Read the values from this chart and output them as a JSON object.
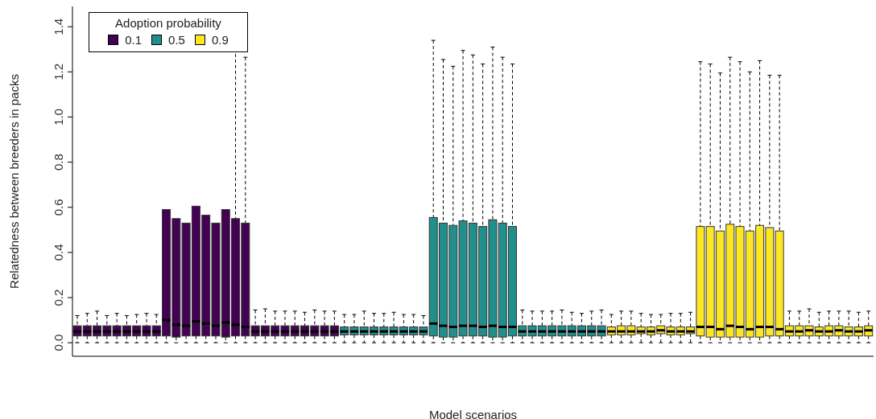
{
  "chart_data": {
    "type": "box",
    "xlabel": "Model scenarios",
    "ylabel": "Relatedness between breeders in packs",
    "legend_title": "Adoption probability",
    "legend": "top left",
    "tick_labels": "y",
    "categories": [
      null,
      null,
      null,
      null,
      null,
      null,
      null,
      null,
      null,
      null,
      null,
      null,
      null,
      null,
      null,
      null,
      null,
      null,
      null,
      null,
      null,
      null,
      null,
      null,
      null,
      null,
      null,
      null,
      null,
      null,
      null,
      null,
      null,
      null,
      null,
      null,
      null,
      null,
      null,
      null,
      null,
      null,
      null,
      null,
      null,
      null,
      null,
      null,
      null,
      null,
      null,
      null,
      null,
      null,
      null,
      null,
      null,
      null,
      null,
      null,
      null,
      null,
      null,
      null,
      null,
      null,
      null,
      null,
      null,
      null,
      null,
      null,
      null,
      null,
      null,
      null,
      null,
      null,
      null,
      null,
      null
    ],
    "ylim": [
      -0.06,
      1.49
    ],
    "yticks": [
      {
        "value": 0,
        "label": "0.0"
      },
      0.2,
      0.4,
      0.6,
      0.8,
      {
        "value": 1,
        "label": "1.0"
      },
      1.2,
      1.4
    ],
    "series": [
      {
        "name": "0.1",
        "color": "#440154",
        "boxes": [
          {
            "low": 0,
            "q1": 0.03,
            "median": 0.05,
            "q3": 0.075,
            "high": 0.12
          },
          {
            "low": 0,
            "q1": 0.03,
            "median": 0.05,
            "q3": 0.075,
            "high": 0.13
          },
          {
            "low": 0,
            "q1": 0.03,
            "median": 0.05,
            "q3": 0.075,
            "high": 0.14
          },
          {
            "low": 0,
            "q1": 0.03,
            "median": 0.05,
            "q3": 0.075,
            "high": 0.12
          },
          {
            "low": 0,
            "q1": 0.03,
            "median": 0.05,
            "q3": 0.075,
            "high": 0.13
          },
          {
            "low": 0,
            "q1": 0.03,
            "median": 0.05,
            "q3": 0.075,
            "high": 0.12
          },
          {
            "low": 0,
            "q1": 0.03,
            "median": 0.05,
            "q3": 0.075,
            "high": 0.125
          },
          {
            "low": 0,
            "q1": 0.03,
            "median": 0.05,
            "q3": 0.075,
            "high": 0.13
          },
          {
            "low": 0,
            "q1": 0.03,
            "median": 0.05,
            "q3": 0.075,
            "high": 0.125
          },
          {
            "low": 0,
            "q1": 0.03,
            "median": 0.1,
            "q3": 0.59,
            "high": null
          },
          {
            "low": 0,
            "q1": 0.025,
            "median": 0.08,
            "q3": 0.55,
            "high": null
          },
          {
            "low": 0,
            "q1": 0.03,
            "median": 0.075,
            "q3": 0.53,
            "high": null
          },
          {
            "low": 0,
            "q1": 0.03,
            "median": 0.095,
            "q3": 0.605,
            "high": null
          },
          {
            "low": 0,
            "q1": 0.03,
            "median": 0.085,
            "q3": 0.565,
            "high": null
          },
          {
            "low": 0,
            "q1": 0.03,
            "median": 0.075,
            "q3": 0.53,
            "high": null
          },
          {
            "low": 0,
            "q1": 0.025,
            "median": 0.09,
            "q3": 0.59,
            "high": null
          },
          {
            "low": 0,
            "q1": 0.03,
            "median": 0.08,
            "q3": 0.55,
            "high": 1.33
          },
          {
            "low": 0,
            "q1": 0.03,
            "median": 0.07,
            "q3": 0.53,
            "high": 1.265
          },
          {
            "low": 0,
            "q1": 0.03,
            "median": 0.05,
            "q3": 0.075,
            "high": 0.145
          },
          {
            "low": 0,
            "q1": 0.03,
            "median": 0.05,
            "q3": 0.075,
            "high": 0.15
          },
          {
            "low": 0,
            "q1": 0.03,
            "median": 0.05,
            "q3": 0.075,
            "high": 0.14
          },
          {
            "low": 0,
            "q1": 0.03,
            "median": 0.05,
            "q3": 0.075,
            "high": 0.14
          },
          {
            "low": 0,
            "q1": 0.03,
            "median": 0.05,
            "q3": 0.075,
            "high": 0.14
          },
          {
            "low": 0,
            "q1": 0.03,
            "median": 0.05,
            "q3": 0.075,
            "high": 0.135
          },
          {
            "low": 0,
            "q1": 0.03,
            "median": 0.05,
            "q3": 0.075,
            "high": 0.145
          },
          {
            "low": 0,
            "q1": 0.03,
            "median": 0.05,
            "q3": 0.075,
            "high": 0.14
          },
          {
            "low": 0,
            "q1": 0.03,
            "median": 0.05,
            "q3": 0.075,
            "high": 0.14
          },
          null,
          null,
          null,
          null,
          null,
          null,
          null,
          null,
          null,
          null,
          null,
          null,
          null,
          null,
          null,
          null,
          null,
          null,
          null,
          null,
          null,
          null,
          null,
          null,
          null,
          null,
          null,
          null,
          null,
          null,
          null,
          null,
          null,
          null,
          null,
          null,
          null,
          null,
          null,
          null,
          null,
          null,
          null,
          null,
          null,
          null,
          null,
          null,
          null,
          null,
          null,
          null,
          null,
          null
        ]
      },
      {
        "name": "0.5",
        "color": "#21908c",
        "boxes": [
          null,
          null,
          null,
          null,
          null,
          null,
          null,
          null,
          null,
          null,
          null,
          null,
          null,
          null,
          null,
          null,
          null,
          null,
          null,
          null,
          null,
          null,
          null,
          null,
          null,
          null,
          null,
          {
            "low": 0,
            "q1": 0.035,
            "median": 0.05,
            "q3": 0.07,
            "high": 0.125
          },
          {
            "low": 0,
            "q1": 0.035,
            "median": 0.05,
            "q3": 0.07,
            "high": 0.125
          },
          {
            "low": 0,
            "q1": 0.035,
            "median": 0.05,
            "q3": 0.07,
            "high": 0.14
          },
          {
            "low": 0,
            "q1": 0.035,
            "median": 0.05,
            "q3": 0.07,
            "high": 0.13
          },
          {
            "low": 0,
            "q1": 0.035,
            "median": 0.05,
            "q3": 0.07,
            "high": 0.13
          },
          {
            "low": 0,
            "q1": 0.035,
            "median": 0.05,
            "q3": 0.07,
            "high": 0.135
          },
          {
            "low": 0,
            "q1": 0.035,
            "median": 0.05,
            "q3": 0.07,
            "high": 0.125
          },
          {
            "low": 0,
            "q1": 0.035,
            "median": 0.05,
            "q3": 0.07,
            "high": 0.125
          },
          {
            "low": 0,
            "q1": 0.035,
            "median": 0.05,
            "q3": 0.07,
            "high": 0.12
          },
          {
            "low": 0,
            "q1": 0.03,
            "median": 0.085,
            "q3": 0.555,
            "high": 1.34
          },
          {
            "low": 0,
            "q1": 0.025,
            "median": 0.075,
            "q3": 0.53,
            "high": 1.255
          },
          {
            "low": 0,
            "q1": 0.025,
            "median": 0.07,
            "q3": 0.52,
            "high": 1.225
          },
          {
            "low": 0,
            "q1": 0.03,
            "median": 0.075,
            "q3": 0.54,
            "high": 1.295
          },
          {
            "low": 0,
            "q1": 0.03,
            "median": 0.075,
            "q3": 0.53,
            "high": 1.275
          },
          {
            "low": 0,
            "q1": 0.03,
            "median": 0.07,
            "q3": 0.515,
            "high": 1.235
          },
          {
            "low": 0,
            "q1": 0.025,
            "median": 0.075,
            "q3": 0.545,
            "high": 1.31
          },
          {
            "low": 0,
            "q1": 0.025,
            "median": 0.07,
            "q3": 0.53,
            "high": 1.265
          },
          {
            "low": 0,
            "q1": 0.03,
            "median": 0.07,
            "q3": 0.515,
            "high": 1.235
          },
          {
            "low": 0,
            "q1": 0.03,
            "median": 0.05,
            "q3": 0.075,
            "high": 0.145
          },
          {
            "low": 0,
            "q1": 0.03,
            "median": 0.05,
            "q3": 0.075,
            "high": 0.14
          },
          {
            "low": 0,
            "q1": 0.03,
            "median": 0.05,
            "q3": 0.075,
            "high": 0.14
          },
          {
            "low": 0,
            "q1": 0.03,
            "median": 0.05,
            "q3": 0.075,
            "high": 0.14
          },
          {
            "low": 0,
            "q1": 0.03,
            "median": 0.05,
            "q3": 0.075,
            "high": 0.145
          },
          {
            "low": 0,
            "q1": 0.03,
            "median": 0.05,
            "q3": 0.075,
            "high": 0.135
          },
          {
            "low": 0,
            "q1": 0.03,
            "median": 0.05,
            "q3": 0.075,
            "high": 0.13
          },
          {
            "low": 0,
            "q1": 0.03,
            "median": 0.05,
            "q3": 0.075,
            "high": 0.14
          },
          {
            "low": 0,
            "q1": 0.03,
            "median": 0.05,
            "q3": 0.075,
            "high": 0.145
          },
          null,
          null,
          null,
          null,
          null,
          null,
          null,
          null,
          null,
          null,
          null,
          null,
          null,
          null,
          null,
          null,
          null,
          null,
          null,
          null,
          null,
          null,
          null,
          null,
          null,
          null,
          null
        ]
      },
      {
        "name": "0.9",
        "color": "#fde725",
        "boxes": [
          null,
          null,
          null,
          null,
          null,
          null,
          null,
          null,
          null,
          null,
          null,
          null,
          null,
          null,
          null,
          null,
          null,
          null,
          null,
          null,
          null,
          null,
          null,
          null,
          null,
          null,
          null,
          null,
          null,
          null,
          null,
          null,
          null,
          null,
          null,
          null,
          null,
          null,
          null,
          null,
          null,
          null,
          null,
          null,
          null,
          null,
          null,
          null,
          null,
          null,
          null,
          null,
          null,
          null,
          {
            "low": 0,
            "q1": 0.035,
            "median": 0.05,
            "q3": 0.07,
            "high": 0.125
          },
          {
            "low": 0,
            "q1": 0.035,
            "median": 0.05,
            "q3": 0.075,
            "high": 0.14
          },
          {
            "low": 0,
            "q1": 0.035,
            "median": 0.05,
            "q3": 0.075,
            "high": 0.14
          },
          {
            "low": 0,
            "q1": 0.04,
            "median": 0.05,
            "q3": 0.07,
            "high": 0.13
          },
          {
            "low": 0,
            "q1": 0.035,
            "median": 0.05,
            "q3": 0.07,
            "high": 0.125
          },
          {
            "low": 0,
            "q1": 0.04,
            "median": 0.055,
            "q3": 0.075,
            "high": 0.125
          },
          {
            "low": 0,
            "q1": 0.035,
            "median": 0.05,
            "q3": 0.07,
            "high": 0.13
          },
          {
            "low": 0,
            "q1": 0.035,
            "median": 0.05,
            "q3": 0.07,
            "high": 0.13
          },
          {
            "low": 0,
            "q1": 0.04,
            "median": 0.05,
            "q3": 0.07,
            "high": 0.135
          },
          {
            "low": 0,
            "q1": 0.03,
            "median": 0.07,
            "q3": 0.515,
            "high": 1.245
          },
          {
            "low": 0,
            "q1": 0.025,
            "median": 0.07,
            "q3": 0.515,
            "high": 1.235
          },
          {
            "low": 0,
            "q1": 0.025,
            "median": 0.06,
            "q3": 0.495,
            "high": 1.195
          },
          {
            "low": 0,
            "q1": 0.025,
            "median": 0.075,
            "q3": 0.525,
            "high": 1.265
          },
          {
            "low": 0,
            "q1": 0.025,
            "median": 0.07,
            "q3": 0.515,
            "high": 1.245
          },
          {
            "low": 0,
            "q1": 0.025,
            "median": 0.06,
            "q3": 0.495,
            "high": 1.2
          },
          {
            "low": 0,
            "q1": 0.025,
            "median": 0.07,
            "q3": 0.52,
            "high": 1.25
          },
          {
            "low": 0,
            "q1": 0.03,
            "median": 0.07,
            "q3": 0.51,
            "high": 1.185
          },
          {
            "low": 0,
            "q1": 0.03,
            "median": 0.06,
            "q3": 0.495,
            "high": 1.185
          },
          {
            "low": 0,
            "q1": 0.03,
            "median": 0.05,
            "q3": 0.075,
            "high": 0.14
          },
          {
            "low": 0,
            "q1": 0.03,
            "median": 0.05,
            "q3": 0.075,
            "high": 0.14
          },
          {
            "low": 0,
            "q1": 0.03,
            "median": 0.055,
            "q3": 0.075,
            "high": 0.15
          },
          {
            "low": 0,
            "q1": 0.03,
            "median": 0.05,
            "q3": 0.07,
            "high": 0.135
          },
          {
            "low": 0,
            "q1": 0.03,
            "median": 0.05,
            "q3": 0.075,
            "high": 0.14
          },
          {
            "low": 0,
            "q1": 0.03,
            "median": 0.055,
            "q3": 0.075,
            "high": 0.14
          },
          {
            "low": 0,
            "q1": 0.03,
            "median": 0.05,
            "q3": 0.07,
            "high": 0.14
          },
          {
            "low": 0,
            "q1": 0.03,
            "median": 0.05,
            "q3": 0.07,
            "high": 0.135
          },
          {
            "low": 0,
            "q1": 0.03,
            "median": 0.055,
            "q3": 0.075,
            "high": 0.14
          }
        ]
      }
    ]
  }
}
